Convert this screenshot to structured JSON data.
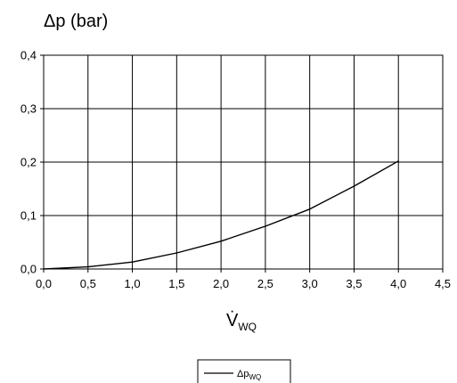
{
  "chart_data": {
    "type": "line",
    "title": "Δp (bar)",
    "xlabel": {
      "main": "V̇",
      "sub": "WQ"
    },
    "ylabel": "",
    "xlim": [
      0.0,
      4.5
    ],
    "ylim": [
      0.0,
      0.4
    ],
    "x_ticks": [
      "0,0",
      "0,5",
      "1,0",
      "1,5",
      "2,0",
      "2,5",
      "3,0",
      "3,5",
      "4,0",
      "4,5"
    ],
    "y_ticks": [
      "0,0",
      "0,1",
      "0,2",
      "0,3",
      "0,4"
    ],
    "grid": true,
    "legend_position": "bottom-center",
    "series": [
      {
        "name": {
          "main": "Δp",
          "sub": "WQ"
        },
        "color": "#000000",
        "x": [
          0.0,
          0.5,
          1.0,
          1.5,
          2.0,
          2.5,
          3.0,
          3.5,
          4.0
        ],
        "y": [
          0.0,
          0.004,
          0.013,
          0.03,
          0.052,
          0.08,
          0.112,
          0.155,
          0.202
        ]
      }
    ]
  }
}
